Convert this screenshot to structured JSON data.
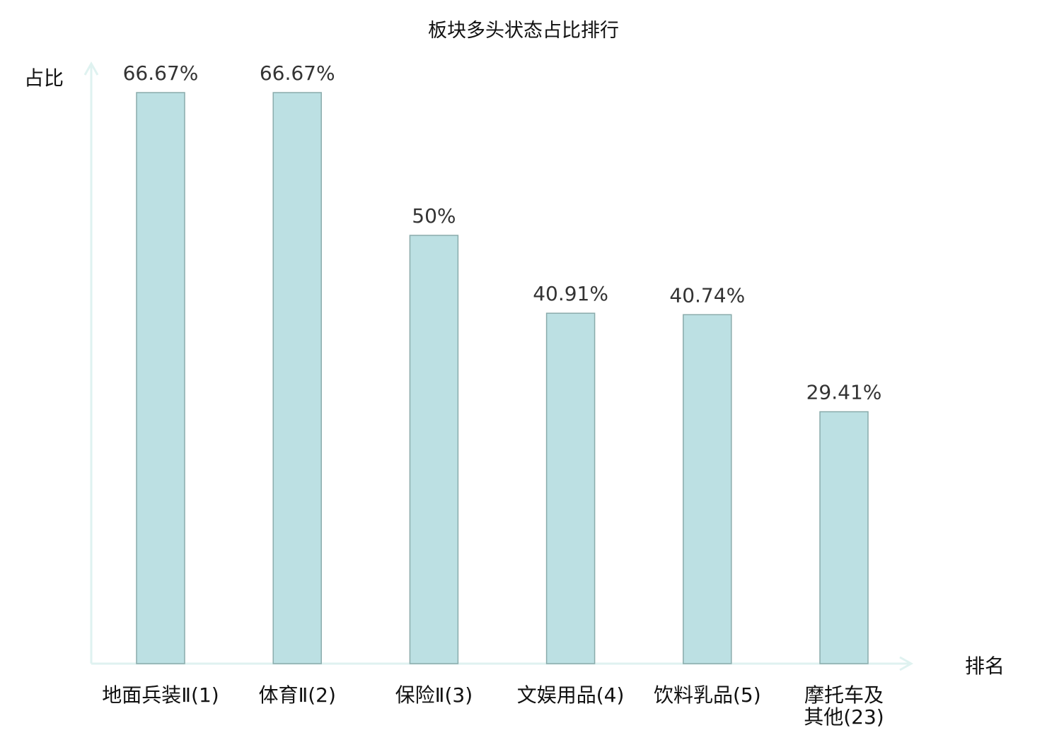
{
  "chart_data": {
    "type": "bar",
    "title": "板块多头状态占比排行",
    "xlabel": "排名",
    "ylabel": "占比",
    "categories": [
      "地面兵装Ⅱ(1)",
      "体育Ⅱ(2)",
      "保险Ⅱ(3)",
      "文娱用品(4)",
      "饮料乳品(5)",
      "摩托车及其他(23)"
    ],
    "values": [
      66.67,
      66.67,
      50,
      40.91,
      40.74,
      29.41
    ],
    "data_labels": [
      "66.67%",
      "66.67%",
      "50%",
      "40.91%",
      "40.74%",
      "29.41%"
    ],
    "highlight_index": 5,
    "ylim": [
      0,
      70
    ],
    "grid": false,
    "colors": {
      "bar_fill": "#bce0e3",
      "bar_stroke": "#8aabab",
      "axis": "#dff2f0",
      "highlight_label": "#ff0000",
      "label": "#111111",
      "value_label": "#333333"
    }
  }
}
